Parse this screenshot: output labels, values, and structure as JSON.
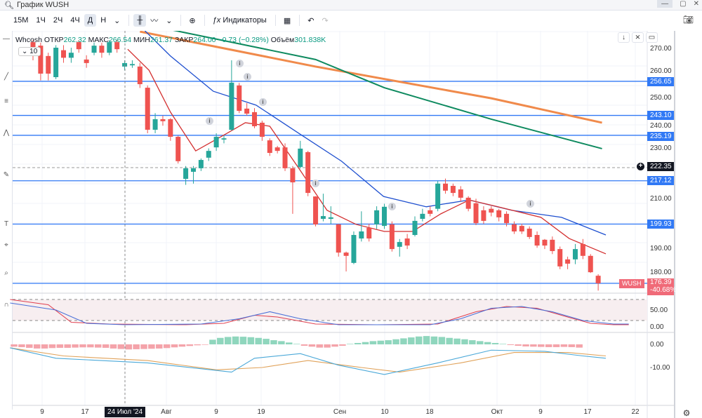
{
  "window": {
    "title": "График WUSH",
    "buttons": [
      "—",
      "▢",
      "✕"
    ]
  },
  "toolbar": {
    "intervals": [
      "15М",
      "1Ч",
      "2Ч",
      "4Ч",
      "Д",
      "Н"
    ],
    "active_interval": "Д",
    "indicators_label": "Индикаторы"
  },
  "legend": {
    "name": "Whcosh",
    "open_label": "ОТКР",
    "open": "262.32",
    "high_label": "МАКС",
    "high": "266.54",
    "low_label": "МИН",
    "low": "261.37",
    "close_label": "ЗАКР",
    "close": "264.00",
    "change": "−0.73 (−0.28%)",
    "volume_label": "Объём",
    "volume": "301.838K",
    "interval_box": "10"
  },
  "colors": {
    "up": "#26a69a",
    "down": "#ef5350",
    "level": "#3179f5",
    "ma_red": "#d32f2f",
    "ma_blue": "#1e4fcf",
    "ma_green": "#0e8a5f",
    "ma_orange": "#f08a4b"
  },
  "price_axis": {
    "ticks": [
      "270.00",
      "260.00",
      "250.00",
      "240.00",
      "230.00",
      "210.00",
      "190.00",
      "180.00"
    ],
    "levels": [
      "256.65",
      "243.10",
      "235.19",
      "217.12",
      "199.93"
    ],
    "crosshair_price": "222.35",
    "last": {
      "ticker": "WUSH",
      "price": "176.39",
      "change": "-40.68%"
    }
  },
  "osc_axis": {
    "ticks": [
      "50.00",
      "0.00"
    ]
  },
  "macd_axis": {
    "ticks": [
      "0.00",
      "-10.00"
    ]
  },
  "time_axis": {
    "labels": [
      "9",
      "17",
      "24 Июл '24",
      "Авг",
      "9",
      "19",
      "Сен",
      "10",
      "18",
      "Окт",
      "9",
      "17",
      "22"
    ],
    "crosshair_label": "24 Июл '24"
  },
  "chart_data": {
    "type": "candlestick",
    "candles_ohlc_as_o_c_h_l": [
      [
        272.2,
        266.7,
        273,
        265
      ],
      [
        270.8,
        259.7,
        272,
        257
      ],
      [
        266.7,
        259.7,
        268,
        257
      ],
      [
        258.3,
        270,
        271,
        257.5
      ],
      [
        269,
        266,
        271,
        264
      ],
      [
        266,
        268,
        270,
        264
      ],
      [
        272.2,
        269.4,
        273,
        268
      ],
      [
        265.3,
        263.9,
        267,
        262
      ],
      [
        268,
        270.8,
        272,
        267
      ],
      [
        270.8,
        268,
        272,
        266
      ],
      [
        268,
        272.2,
        273,
        267
      ],
      [
        272.2,
        269.4,
        273,
        268
      ],
      [
        262.5,
        263.9,
        265,
        261
      ],
      [
        263,
        263.5,
        265,
        262
      ],
      [
        262.5,
        255.5,
        264,
        254
      ],
      [
        254.1,
        237.4,
        255,
        236
      ],
      [
        237.4,
        241.6,
        244,
        236
      ],
      [
        241.6,
        240.8,
        243,
        239
      ],
      [
        241.6,
        234.6,
        242,
        233
      ],
      [
        234.6,
        224.9,
        235,
        224
      ],
      [
        217.9,
        222.1,
        223,
        215.5
      ],
      [
        220.7,
        222.1,
        223,
        216
      ],
      [
        222.1,
        225.4,
        226,
        221
      ],
      [
        226.3,
        229,
        230,
        225
      ],
      [
        230.4,
        234.6,
        236,
        229
      ],
      [
        233.5,
        234,
        235,
        232
      ],
      [
        237.4,
        256.1,
        265,
        237
      ],
      [
        255,
        244.9,
        256,
        244
      ],
      [
        245.8,
        243.8,
        248,
        243
      ],
      [
        244.4,
        238.8,
        246,
        238
      ],
      [
        240.2,
        234.6,
        241,
        233
      ],
      [
        233.2,
        228.2,
        234,
        227
      ],
      [
        230.4,
        229,
        231,
        228
      ],
      [
        230.4,
        222.1,
        232,
        221
      ],
      [
        222.1,
        216.5,
        223,
        204
      ],
      [
        222.6,
        229.9,
        233,
        222
      ],
      [
        228.5,
        212.3,
        229,
        211
      ],
      [
        210.9,
        199.8,
        211,
        199
      ],
      [
        202,
        203.1,
        212,
        201
      ],
      [
        202,
        202.6,
        207,
        200
      ],
      [
        199.8,
        188.6,
        200,
        187
      ],
      [
        188.6,
        187.3,
        189,
        181.1
      ],
      [
        184.5,
        195.6,
        197,
        184
      ],
      [
        194.2,
        197,
        205,
        193
      ],
      [
        198.4,
        194.2,
        200,
        193
      ],
      [
        199.8,
        205.4,
        207,
        198
      ],
      [
        199.2,
        206.8,
        208,
        198
      ],
      [
        199.8,
        190,
        201,
        189
      ],
      [
        190.9,
        192.8,
        194,
        187
      ],
      [
        194.2,
        191.4,
        196,
        190
      ],
      [
        195.6,
        201.2,
        203,
        195
      ],
      [
        202,
        204,
        206,
        201
      ],
      [
        205.4,
        204,
        207,
        203
      ],
      [
        206,
        216,
        217,
        205
      ],
      [
        216,
        213.2,
        218,
        212
      ],
      [
        215.1,
        212.3,
        216,
        211
      ],
      [
        213.7,
        210.4,
        215,
        209
      ],
      [
        210.4,
        206,
        211,
        205
      ],
      [
        208.2,
        200.3,
        210,
        199.5
      ],
      [
        205.4,
        201.2,
        207,
        200
      ],
      [
        206,
        204.5,
        207,
        203
      ],
      [
        205.4,
        202.6,
        206,
        201
      ],
      [
        204,
        200.3,
        205,
        199
      ],
      [
        199.8,
        197,
        201,
        196
      ],
      [
        199.2,
        197,
        200,
        196
      ],
      [
        198.1,
        194.8,
        199,
        194
      ],
      [
        195.6,
        191.4,
        197,
        190.5
      ],
      [
        193.7,
        191.4,
        194,
        190
      ],
      [
        193.7,
        189.2,
        195,
        188
      ],
      [
        190,
        183.1,
        191,
        182
      ],
      [
        185.9,
        184.2,
        187,
        182
      ],
      [
        185.9,
        190,
        192,
        184
      ],
      [
        192,
        187.3,
        194,
        186
      ],
      [
        187.3,
        180.8,
        188,
        180.5
      ],
      [
        179.4,
        176.4,
        180,
        173.5
      ]
    ],
    "levels": [
      256.65,
      243.1,
      235.19,
      217.12,
      199.93,
      176.39
    ],
    "ylim": [
      168,
      276.4
    ],
    "ma_series": [
      {
        "name": "ma_orange",
        "points": [
          [
            14,
            276.4
          ],
          [
            37,
            262.5
          ],
          [
            60,
            249.9
          ],
          [
            74.5,
            240.2
          ]
        ]
      },
      {
        "name": "ma_green",
        "points": [
          [
            17,
            277.8
          ],
          [
            37,
            265.3
          ],
          [
            46,
            254.1
          ],
          [
            60,
            241.6
          ],
          [
            74.5,
            229.9
          ]
        ]
      },
      {
        "name": "ma_blue",
        "points": [
          [
            14.3,
            277.8
          ],
          [
            18,
            266.7
          ],
          [
            23.6,
            252.7
          ],
          [
            29.2,
            247.2
          ],
          [
            34.8,
            236
          ],
          [
            40.4,
            224.9
          ],
          [
            45.9,
            210.9
          ],
          [
            51.5,
            206.8
          ],
          [
            57.1,
            209.5
          ],
          [
            62.7,
            205.4
          ],
          [
            69.2,
            202.6
          ],
          [
            75,
            195.6
          ]
        ]
      },
      {
        "name": "ma_red",
        "points": [
          [
            12.4,
            269.4
          ],
          [
            15.2,
            261
          ],
          [
            18,
            244.4
          ],
          [
            21.3,
            229
          ],
          [
            25.4,
            236
          ],
          [
            27.8,
            240.2
          ],
          [
            31,
            238.8
          ],
          [
            34.8,
            222.1
          ],
          [
            38.5,
            205.4
          ],
          [
            42.3,
            199.8
          ],
          [
            46,
            197
          ],
          [
            49.7,
            197
          ],
          [
            53.4,
            204
          ],
          [
            57.1,
            209.5
          ],
          [
            60.9,
            206.8
          ],
          [
            66.5,
            202.6
          ],
          [
            70.2,
            194.2
          ],
          [
            75,
            188.1
          ]
        ]
      }
    ],
    "oscillator": {
      "ylim": [
        0,
        100
      ],
      "red": [
        [
          -3,
          80
        ],
        [
          2,
          65
        ],
        [
          5,
          15
        ],
        [
          10,
          10
        ],
        [
          20,
          8
        ],
        [
          25,
          12
        ],
        [
          29,
          35
        ],
        [
          32,
          30
        ],
        [
          37,
          10
        ],
        [
          45,
          8
        ],
        [
          53,
          10
        ],
        [
          58,
          45
        ],
        [
          62,
          60
        ],
        [
          66,
          55
        ],
        [
          70,
          30
        ],
        [
          73,
          12
        ],
        [
          76,
          8
        ],
        [
          78,
          8
        ]
      ],
      "blue": [
        [
          -3,
          70
        ],
        [
          3,
          50
        ],
        [
          7,
          12
        ],
        [
          12,
          8
        ],
        [
          22,
          10
        ],
        [
          27,
          25
        ],
        [
          31,
          45
        ],
        [
          35,
          25
        ],
        [
          40,
          8
        ],
        [
          52,
          8
        ],
        [
          56,
          25
        ],
        [
          60,
          55
        ],
        [
          64,
          60
        ],
        [
          68,
          45
        ],
        [
          72,
          20
        ],
        [
          76,
          10
        ],
        [
          78,
          10
        ]
      ]
    },
    "macd": {
      "ylim": [
        -16,
        4
      ],
      "histogram": [
        -1,
        -1.2,
        -1.5,
        -1.8,
        -1.8,
        -1.6,
        -1.5,
        -1.5,
        -1.4,
        -1.3,
        -1.3,
        -1.4,
        -1.5,
        -1.8,
        -2,
        -2.2,
        -2.1,
        -2,
        -1.9,
        -1.8,
        -1.6,
        -1.3,
        -1,
        -0.7,
        -0.4,
        -0.2,
        2,
        2.8,
        3.2,
        3.4,
        3.3,
        3.1,
        2.8,
        2.4,
        1.8,
        1.4,
        0.8,
        0.2,
        -0.6,
        -1,
        -1.4,
        -1.4,
        -1,
        -0.6,
        0.2,
        0.6,
        1,
        1.4,
        1.6,
        1.8,
        2.2,
        2.6,
        3,
        3.4,
        3.6,
        3.4,
        3.2,
        2.8,
        2.5,
        2.2,
        1.8,
        1.4,
        1,
        0.6,
        0.2,
        -0.3,
        -0.6,
        -0.9,
        -1,
        -1.1,
        -1.2,
        -1.2,
        -1.1,
        -1.2,
        -1.4
      ],
      "blue": [
        [
          -3,
          -1.5
        ],
        [
          3,
          -6
        ],
        [
          15,
          -8
        ],
        [
          26,
          -12
        ],
        [
          29,
          -6
        ],
        [
          35,
          -4
        ],
        [
          40,
          -9
        ],
        [
          46,
          -13
        ],
        [
          53,
          -8
        ],
        [
          60,
          -2.5
        ],
        [
          67,
          -3
        ],
        [
          72,
          -5
        ],
        [
          75,
          -6
        ]
      ],
      "orange": [
        [
          -3,
          -1.5
        ],
        [
          4,
          -5
        ],
        [
          15,
          -7
        ],
        [
          24,
          -11
        ],
        [
          30,
          -10
        ],
        [
          36,
          -7
        ],
        [
          43,
          -10
        ],
        [
          48,
          -12
        ],
        [
          56,
          -8
        ],
        [
          63,
          -3.5
        ],
        [
          70,
          -3.5
        ],
        [
          75,
          -5
        ]
      ]
    }
  }
}
